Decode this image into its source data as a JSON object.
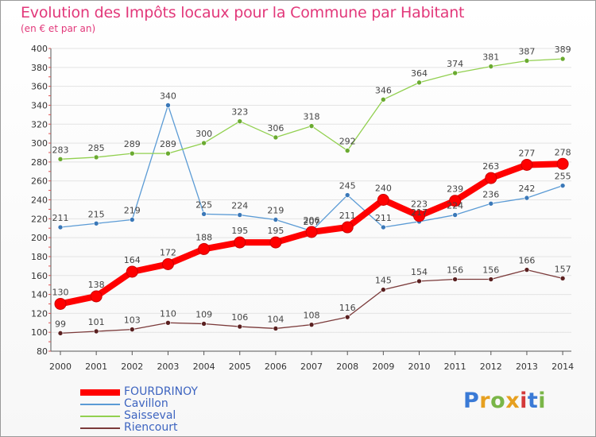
{
  "title": "Evolution des Impôts locaux pour la Commune par Habitant",
  "subtitle": "(en € et par an)",
  "logo": {
    "letters": [
      {
        "char": "P",
        "color": "#3a7ad6"
      },
      {
        "char": "r",
        "color": "#e6a020"
      },
      {
        "char": "o",
        "color": "#7ab648"
      },
      {
        "char": "x",
        "color": "#e6a020"
      },
      {
        "char": "i",
        "color": "#d43a3a"
      },
      {
        "char": "t",
        "color": "#3a7ad6"
      },
      {
        "char": "i",
        "color": "#7ab648"
      }
    ]
  },
  "chart_data": {
    "type": "line",
    "title": "Evolution des Impôts locaux pour la Commune par Habitant",
    "subtitle": "(en € et par an)",
    "x": [
      "2000",
      "2001",
      "2002",
      "2003",
      "2004",
      "2005",
      "2006",
      "2007",
      "2008",
      "2009",
      "2010",
      "2011",
      "2012",
      "2013",
      "2014"
    ],
    "ylim": [
      80,
      400
    ],
    "yticks": [
      80,
      100,
      120,
      140,
      160,
      180,
      200,
      220,
      240,
      260,
      280,
      300,
      320,
      340,
      360,
      380,
      400
    ],
    "grid": "horizontal",
    "legend_position": "bottom-left",
    "series": [
      {
        "name": "FOURDRINOY",
        "color": "#ff0000",
        "point_color": "#e60000",
        "emphasis": true,
        "values": [
          130,
          138,
          164,
          172,
          188,
          195,
          195,
          206,
          211,
          240,
          223,
          239,
          263,
          277,
          278
        ]
      },
      {
        "name": "Cavillon",
        "color": "#5b9bd5",
        "point_color": "#3a78b8",
        "emphasis": false,
        "values": [
          211,
          215,
          219,
          340,
          225,
          224,
          219,
          207,
          245,
          211,
          217,
          224,
          236,
          242,
          255
        ]
      },
      {
        "name": "Saisseval",
        "color": "#92d050",
        "point_color": "#6aaa30",
        "emphasis": false,
        "values": [
          283,
          285,
          289,
          289,
          300,
          323,
          306,
          318,
          292,
          346,
          364,
          374,
          381,
          387,
          389
        ]
      },
      {
        "name": "Riencourt",
        "color": "#7b3a3a",
        "point_color": "#5a2020",
        "emphasis": false,
        "values": [
          99,
          101,
          103,
          110,
          109,
          106,
          104,
          108,
          116,
          145,
          154,
          156,
          156,
          166,
          157
        ]
      }
    ]
  }
}
